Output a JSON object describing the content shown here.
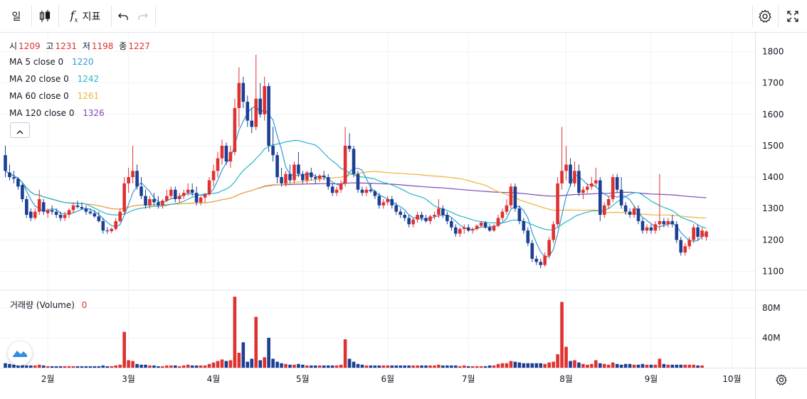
{
  "toolbar": {
    "interval_label": "일",
    "indicators_label": "지표"
  },
  "ohlc_legend": {
    "open_label": "시",
    "open": "1209",
    "high_label": "고",
    "high": "1231",
    "low_label": "저",
    "low": "1198",
    "close_label": "종",
    "close": "1227"
  },
  "ma_legend": [
    {
      "label": "MA 5 close 0",
      "value": "1220",
      "color": "#2d9ad6"
    },
    {
      "label": "MA 20 close 0",
      "value": "1242",
      "color": "#26b5c8"
    },
    {
      "label": "MA 60 close 0",
      "value": "1261",
      "color": "#f0b23a"
    },
    {
      "label": "MA 120 close 0",
      "value": "1326",
      "color": "#7e47b5"
    }
  ],
  "volume_legend": {
    "label": "거래량 (Volume)",
    "value": "0"
  },
  "colors": {
    "up": "#e03131",
    "down": "#1c3f94",
    "grid": "#f0f3fa",
    "axis": "#e0e3eb"
  },
  "chart_data": {
    "type": "candlestick",
    "y_ticks": [
      1100,
      1200,
      1300,
      1400,
      1500,
      1600,
      1700,
      1800
    ],
    "ylim": [
      1040,
      1860
    ],
    "volume_ticks": [
      {
        "value": 40,
        "label": "40M"
      },
      {
        "value": 80,
        "label": "80M"
      }
    ],
    "volume_ylim": [
      0,
      98
    ],
    "x_ticks": [
      {
        "index": 10,
        "label": "2월"
      },
      {
        "index": 29,
        "label": "3월"
      },
      {
        "index": 49,
        "label": "4월"
      },
      {
        "index": 70,
        "label": "5월"
      },
      {
        "index": 90,
        "label": "6월"
      },
      {
        "index": 109,
        "label": "7월"
      },
      {
        "index": 132,
        "label": "8월"
      },
      {
        "index": 152,
        "label": "9월"
      },
      {
        "index": 171,
        "label": "10월"
      }
    ],
    "candles": [
      [
        1470,
        1500,
        1400,
        1420,
        6
      ],
      [
        1415,
        1440,
        1390,
        1400,
        5
      ],
      [
        1400,
        1420,
        1380,
        1395,
        4
      ],
      [
        1395,
        1400,
        1360,
        1370,
        3
      ],
      [
        1375,
        1380,
        1320,
        1330,
        4
      ],
      [
        1330,
        1340,
        1270,
        1280,
        3
      ],
      [
        1290,
        1300,
        1260,
        1270,
        3
      ],
      [
        1270,
        1300,
        1265,
        1290,
        3
      ],
      [
        1290,
        1360,
        1280,
        1330,
        4
      ],
      [
        1320,
        1330,
        1280,
        1290,
        3
      ],
      [
        1285,
        1300,
        1270,
        1295,
        2
      ],
      [
        1295,
        1310,
        1280,
        1290,
        2
      ],
      [
        1290,
        1300,
        1270,
        1280,
        2
      ],
      [
        1280,
        1290,
        1260,
        1270,
        2
      ],
      [
        1270,
        1290,
        1260,
        1280,
        2
      ],
      [
        1280,
        1300,
        1270,
        1295,
        2
      ],
      [
        1295,
        1320,
        1285,
        1310,
        2
      ],
      [
        1310,
        1325,
        1300,
        1305,
        2
      ],
      [
        1305,
        1320,
        1295,
        1300,
        2
      ],
      [
        1300,
        1310,
        1280,
        1290,
        2
      ],
      [
        1290,
        1300,
        1280,
        1285,
        2
      ],
      [
        1285,
        1295,
        1270,
        1275,
        2
      ],
      [
        1275,
        1290,
        1255,
        1260,
        2
      ],
      [
        1260,
        1270,
        1220,
        1230,
        3
      ],
      [
        1230,
        1240,
        1220,
        1228,
        2
      ],
      [
        1228,
        1240,
        1222,
        1235,
        2
      ],
      [
        1235,
        1270,
        1230,
        1260,
        3
      ],
      [
        1260,
        1300,
        1255,
        1290,
        4
      ],
      [
        1290,
        1400,
        1280,
        1380,
        48
      ],
      [
        1380,
        1430,
        1350,
        1400,
        10
      ],
      [
        1400,
        1500,
        1380,
        1420,
        9
      ],
      [
        1420,
        1440,
        1360,
        1370,
        5
      ],
      [
        1370,
        1400,
        1330,
        1340,
        4
      ],
      [
        1340,
        1360,
        1300,
        1310,
        4
      ],
      [
        1310,
        1340,
        1300,
        1330,
        3
      ],
      [
        1330,
        1350,
        1310,
        1320,
        3
      ],
      [
        1320,
        1340,
        1300,
        1310,
        2
      ],
      [
        1310,
        1330,
        1300,
        1325,
        2
      ],
      [
        1325,
        1360,
        1320,
        1340,
        3
      ],
      [
        1340,
        1370,
        1330,
        1360,
        3
      ],
      [
        1360,
        1370,
        1320,
        1330,
        3
      ],
      [
        1330,
        1350,
        1320,
        1340,
        2
      ],
      [
        1340,
        1360,
        1330,
        1350,
        3
      ],
      [
        1350,
        1380,
        1340,
        1360,
        4
      ],
      [
        1360,
        1380,
        1340,
        1350,
        3
      ],
      [
        1350,
        1370,
        1310,
        1320,
        3
      ],
      [
        1320,
        1340,
        1310,
        1335,
        3
      ],
      [
        1335,
        1350,
        1320,
        1345,
        3
      ],
      [
        1345,
        1400,
        1340,
        1390,
        5
      ],
      [
        1390,
        1440,
        1370,
        1420,
        7
      ],
      [
        1420,
        1480,
        1400,
        1460,
        9
      ],
      [
        1460,
        1520,
        1440,
        1500,
        11
      ],
      [
        1500,
        1510,
        1440,
        1450,
        9
      ],
      [
        1450,
        1500,
        1430,
        1480,
        10
      ],
      [
        1480,
        1650,
        1470,
        1620,
        95
      ],
      [
        1620,
        1750,
        1560,
        1700,
        20
      ],
      [
        1700,
        1720,
        1620,
        1640,
        34
      ],
      [
        1640,
        1660,
        1560,
        1580,
        8
      ],
      [
        1580,
        1620,
        1540,
        1560,
        12
      ],
      [
        1560,
        1790,
        1550,
        1650,
        68
      ],
      [
        1650,
        1700,
        1590,
        1600,
        10
      ],
      [
        1600,
        1720,
        1580,
        1690,
        14
      ],
      [
        1690,
        1700,
        1480,
        1500,
        40
      ],
      [
        1500,
        1560,
        1450,
        1470,
        12
      ],
      [
        1470,
        1480,
        1380,
        1400,
        8
      ],
      [
        1400,
        1430,
        1370,
        1380,
        6
      ],
      [
        1380,
        1420,
        1370,
        1410,
        5
      ],
      [
        1410,
        1440,
        1380,
        1390,
        4
      ],
      [
        1390,
        1450,
        1380,
        1440,
        4
      ],
      [
        1440,
        1480,
        1400,
        1410,
        5
      ],
      [
        1410,
        1420,
        1380,
        1390,
        4
      ],
      [
        1390,
        1420,
        1380,
        1415,
        3
      ],
      [
        1415,
        1430,
        1390,
        1400,
        3
      ],
      [
        1400,
        1410,
        1380,
        1395,
        3
      ],
      [
        1395,
        1410,
        1385,
        1405,
        3
      ],
      [
        1405,
        1420,
        1390,
        1400,
        3
      ],
      [
        1400,
        1410,
        1360,
        1370,
        3
      ],
      [
        1370,
        1380,
        1340,
        1350,
        3
      ],
      [
        1350,
        1370,
        1340,
        1360,
        3
      ],
      [
        1360,
        1390,
        1350,
        1380,
        4
      ],
      [
        1380,
        1560,
        1370,
        1500,
        38
      ],
      [
        1500,
        1540,
        1480,
        1490,
        12
      ],
      [
        1490,
        1500,
        1400,
        1410,
        8
      ],
      [
        1410,
        1420,
        1350,
        1360,
        5
      ],
      [
        1360,
        1370,
        1340,
        1350,
        4
      ],
      [
        1350,
        1370,
        1340,
        1360,
        3
      ],
      [
        1360,
        1380,
        1350,
        1355,
        3
      ],
      [
        1355,
        1360,
        1330,
        1340,
        3
      ],
      [
        1340,
        1350,
        1300,
        1310,
        3
      ],
      [
        1310,
        1330,
        1300,
        1320,
        3
      ],
      [
        1320,
        1340,
        1310,
        1330,
        3
      ],
      [
        1330,
        1340,
        1300,
        1310,
        3
      ],
      [
        1310,
        1320,
        1280,
        1290,
        3
      ],
      [
        1290,
        1300,
        1270,
        1280,
        3
      ],
      [
        1280,
        1290,
        1260,
        1270,
        3
      ],
      [
        1270,
        1280,
        1240,
        1250,
        3
      ],
      [
        1250,
        1270,
        1240,
        1265,
        3
      ],
      [
        1265,
        1290,
        1255,
        1280,
        3
      ],
      [
        1280,
        1290,
        1260,
        1270,
        3
      ],
      [
        1270,
        1280,
        1255,
        1260,
        3
      ],
      [
        1260,
        1280,
        1250,
        1275,
        3
      ],
      [
        1275,
        1290,
        1265,
        1280,
        3
      ],
      [
        1280,
        1330,
        1270,
        1300,
        4
      ],
      [
        1300,
        1310,
        1270,
        1280,
        3
      ],
      [
        1280,
        1290,
        1250,
        1260,
        3
      ],
      [
        1260,
        1270,
        1230,
        1240,
        3
      ],
      [
        1240,
        1250,
        1210,
        1220,
        3
      ],
      [
        1220,
        1240,
        1210,
        1235,
        2
      ],
      [
        1235,
        1250,
        1220,
        1240,
        3
      ],
      [
        1240,
        1250,
        1225,
        1230,
        2
      ],
      [
        1230,
        1240,
        1220,
        1235,
        2
      ],
      [
        1235,
        1250,
        1230,
        1245,
        2
      ],
      [
        1245,
        1260,
        1240,
        1255,
        2
      ],
      [
        1255,
        1260,
        1235,
        1240,
        2
      ],
      [
        1240,
        1250,
        1225,
        1230,
        3
      ],
      [
        1230,
        1250,
        1225,
        1245,
        3
      ],
      [
        1245,
        1280,
        1240,
        1270,
        5
      ],
      [
        1270,
        1300,
        1260,
        1290,
        6
      ],
      [
        1290,
        1330,
        1280,
        1310,
        6
      ],
      [
        1310,
        1380,
        1300,
        1370,
        9
      ],
      [
        1370,
        1380,
        1290,
        1300,
        8
      ],
      [
        1300,
        1310,
        1250,
        1260,
        7
      ],
      [
        1260,
        1270,
        1220,
        1230,
        6
      ],
      [
        1230,
        1240,
        1180,
        1190,
        6
      ],
      [
        1190,
        1200,
        1130,
        1140,
        6
      ],
      [
        1140,
        1150,
        1120,
        1130,
        6
      ],
      [
        1130,
        1140,
        1110,
        1120,
        6
      ],
      [
        1120,
        1160,
        1115,
        1150,
        5
      ],
      [
        1150,
        1210,
        1140,
        1200,
        7
      ],
      [
        1200,
        1260,
        1190,
        1250,
        8
      ],
      [
        1250,
        1400,
        1240,
        1380,
        18
      ],
      [
        1380,
        1560,
        1360,
        1420,
        88
      ],
      [
        1420,
        1500,
        1390,
        1440,
        28
      ],
      [
        1440,
        1460,
        1370,
        1380,
        9
      ],
      [
        1380,
        1450,
        1370,
        1420,
        10
      ],
      [
        1420,
        1440,
        1340,
        1350,
        7
      ],
      [
        1350,
        1370,
        1330,
        1360,
        5
      ],
      [
        1360,
        1380,
        1350,
        1370,
        4
      ],
      [
        1370,
        1400,
        1360,
        1380,
        5
      ],
      [
        1380,
        1430,
        1370,
        1390,
        10
      ],
      [
        1390,
        1400,
        1260,
        1280,
        6
      ],
      [
        1280,
        1320,
        1270,
        1310,
        5
      ],
      [
        1310,
        1340,
        1300,
        1330,
        4
      ],
      [
        1330,
        1410,
        1320,
        1400,
        7
      ],
      [
        1400,
        1410,
        1350,
        1360,
        5
      ],
      [
        1360,
        1400,
        1300,
        1310,
        4
      ],
      [
        1310,
        1320,
        1280,
        1290,
        5
      ],
      [
        1290,
        1300,
        1270,
        1280,
        5
      ],
      [
        1280,
        1310,
        1270,
        1300,
        4
      ],
      [
        1300,
        1310,
        1250,
        1260,
        4
      ],
      [
        1260,
        1270,
        1220,
        1230,
        5
      ],
      [
        1230,
        1250,
        1220,
        1240,
        4
      ],
      [
        1240,
        1250,
        1220,
        1230,
        4
      ],
      [
        1230,
        1260,
        1220,
        1250,
        4
      ],
      [
        1250,
        1410,
        1230,
        1260,
        12
      ],
      [
        1260,
        1270,
        1240,
        1250,
        5
      ],
      [
        1250,
        1270,
        1240,
        1260,
        4
      ],
      [
        1260,
        1280,
        1240,
        1250,
        4
      ],
      [
        1250,
        1260,
        1190,
        1200,
        4
      ],
      [
        1200,
        1210,
        1150,
        1160,
        4
      ],
      [
        1160,
        1190,
        1150,
        1180,
        4
      ],
      [
        1180,
        1210,
        1170,
        1200,
        4
      ],
      [
        1200,
        1250,
        1190,
        1240,
        4
      ],
      [
        1240,
        1250,
        1200,
        1210,
        3
      ],
      [
        1210,
        1240,
        1200,
        1230,
        3
      ],
      [
        1209,
        1231,
        1198,
        1227,
        0
      ]
    ]
  }
}
